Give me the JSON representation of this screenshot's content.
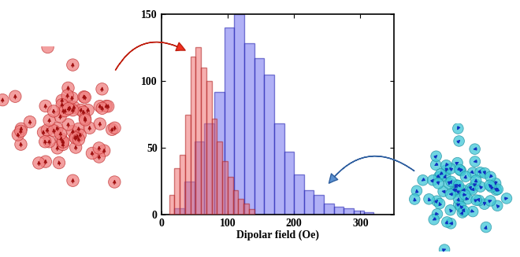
{
  "chart_data": {
    "type": "histogram",
    "xlabel": "Dipolar field (Oe)",
    "xlim": [
      0,
      350
    ],
    "ylim": [
      0,
      150
    ],
    "xticks": [
      0,
      100,
      200,
      300
    ],
    "yticks": [
      0,
      50,
      100,
      150
    ],
    "grid": false,
    "series": [
      {
        "color": "#6f6ff0",
        "bins": [
          20,
          35,
          50,
          65,
          80,
          95,
          110,
          125,
          140,
          155,
          170,
          185,
          200,
          215,
          230,
          245,
          260,
          275,
          290,
          305,
          320
        ],
        "counts": [
          5,
          25,
          55,
          68,
          92,
          140,
          150,
          128,
          117,
          105,
          68,
          47,
          30,
          18,
          15,
          8,
          6,
          5,
          3,
          2
        ]
      },
      {
        "color": "#f07070",
        "bins": [
          12,
          20,
          28,
          36,
          44,
          52,
          60,
          68,
          76,
          84,
          92,
          100,
          108,
          116,
          124,
          132,
          140
        ],
        "counts": [
          15,
          35,
          45,
          75,
          118,
          125,
          110,
          100,
          72,
          55,
          40,
          28,
          18,
          12,
          8,
          4
        ]
      }
    ]
  }
}
